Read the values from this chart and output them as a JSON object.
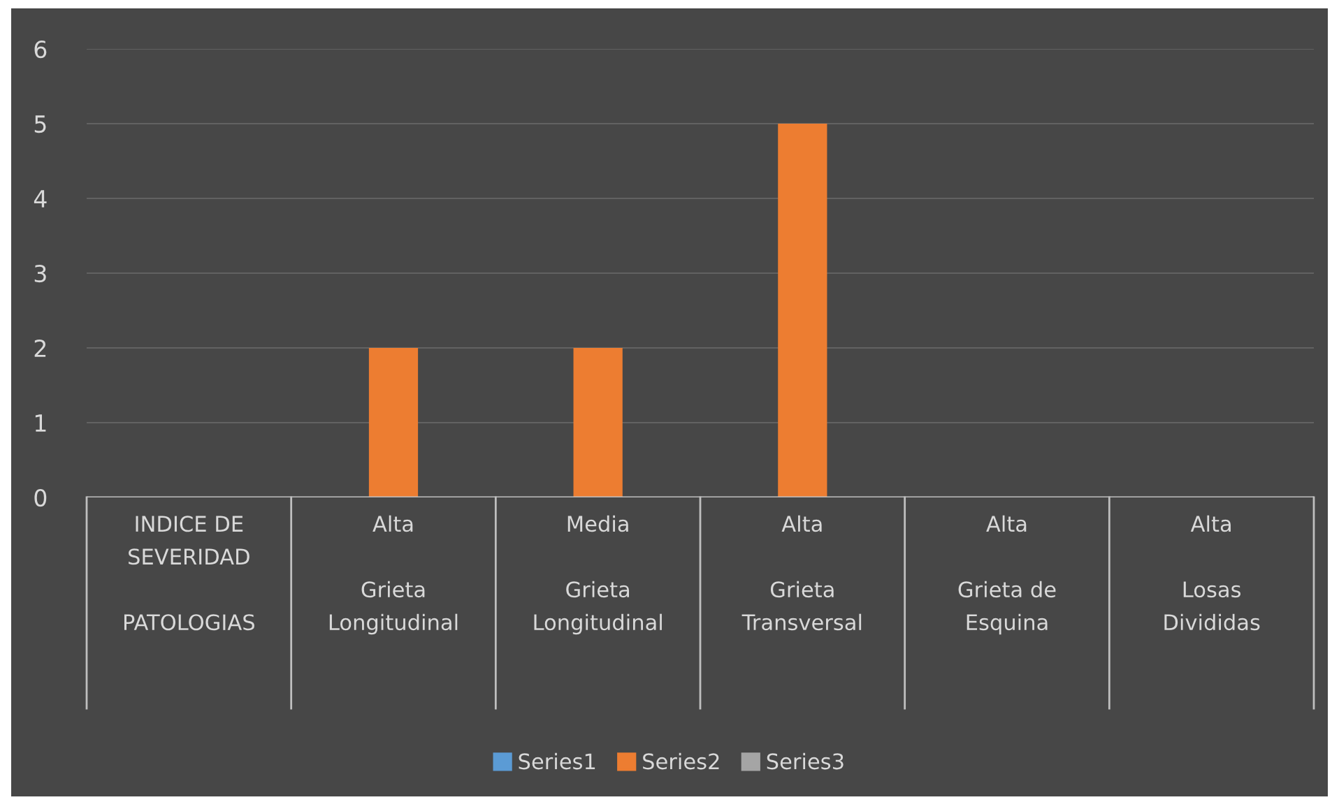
{
  "chart_data": {
    "type": "bar",
    "categories": [
      "INDICE DE\nSEVERIDAD\n\nPATOLOGIAS",
      "Alta\n\nGrieta\nLongitudinal",
      "Media\n\nGrieta\nLongitudinal",
      "Alta\n\nGrieta\nTransversal",
      "Alta\n\nGrieta de\nEsquina",
      "Alta\n\nLosas\nDivididas"
    ],
    "series": [
      {
        "name": "Series1",
        "color": "#5b9bd5",
        "values": [
          null,
          null,
          null,
          null,
          null,
          null
        ]
      },
      {
        "name": "Series2",
        "color": "#ed7d31",
        "values": [
          null,
          2,
          2,
          5,
          null,
          null
        ]
      },
      {
        "name": "Series3",
        "color": "#a5a5a5",
        "values": [
          null,
          null,
          null,
          null,
          null,
          null
        ]
      }
    ],
    "ylim": [
      0,
      6
    ],
    "yticks": [
      0,
      1,
      2,
      3,
      4,
      5,
      6
    ],
    "grid": "y",
    "legend": "bottom"
  }
}
